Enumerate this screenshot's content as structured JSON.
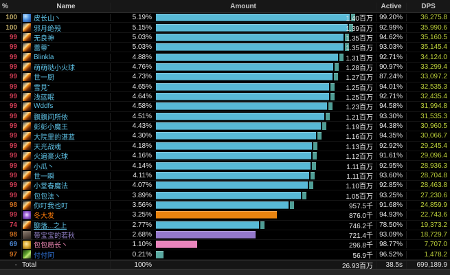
{
  "header": {
    "col_pct": "%",
    "col_name": "Name",
    "col_amount": "Amount",
    "col_active": "Active",
    "col_dps": "DPS"
  },
  "colors": {
    "mage_name": "#5fc3e7",
    "mage_bar": "#58b9d6",
    "bar_cap": "#4f9e96",
    "druid_name": "#ff7d0a",
    "druid_bar": "#e8830f",
    "warlock_name": "#9482c9",
    "warlock_bar": "#9478cb",
    "paladin_name": "#f58cba",
    "paladin_bar": "#ea85bd",
    "shaman_name": "#3377dd",
    "shaman_bar": "#5aa9a1",
    "lvl100": "#c2ad68",
    "lvl99": "#cc3b52",
    "lvl98": "#cc6e1e",
    "lvl69": "#4b86d2",
    "dps_text": "#bdd13b"
  },
  "max_pct": 5.19,
  "rows": [
    {
      "level": "100",
      "level_color": "#c2ad68",
      "icon": "frost",
      "icon_name": "frostbolt-spell-icon",
      "name": "皮长山丶",
      "name_color": "#5fc3e7",
      "pct": 5.19,
      "pct_label": "5.19%",
      "amount": "1.40百万",
      "active": "99.20%",
      "dps": "36,275.8",
      "bar_color": "#58b9d6",
      "cap_color": "#4f9e96"
    },
    {
      "level": "100",
      "level_color": "#c2ad68",
      "icon": "fire",
      "icon_name": "fireball-spell-icon",
      "name": "邪月绝殁",
      "name_color": "#5fc3e7",
      "pct": 5.15,
      "pct_label": "5.15%",
      "amount": "1.39百万",
      "active": "92.99%",
      "dps": "35,990.6",
      "bar_color": "#58b9d6",
      "cap_color": "#4f9e96"
    },
    {
      "level": "99",
      "level_color": "#cc3b52",
      "icon": "fire",
      "icon_name": "fireball-spell-icon",
      "name": "无良神",
      "name_color": "#5fc3e7",
      "pct": 5.03,
      "pct_label": "5.03%",
      "amount": "1.35百万",
      "active": "94.62%",
      "dps": "35,160.5",
      "bar_color": "#58b9d6",
      "cap_color": "#4f9e96"
    },
    {
      "level": "99",
      "level_color": "#cc3b52",
      "icon": "fire",
      "icon_name": "fireball-spell-icon",
      "name": "蕾蒂ˇ",
      "name_color": "#5fc3e7",
      "pct": 5.03,
      "pct_label": "5.03%",
      "amount": "1.35百万",
      "active": "93.03%",
      "dps": "35,145.4",
      "bar_color": "#58b9d6",
      "cap_color": "#4f9e96"
    },
    {
      "level": "99",
      "level_color": "#cc3b52",
      "icon": "fire",
      "icon_name": "fireball-spell-icon",
      "name": "Blinkla",
      "name_color": "#5fc3e7",
      "pct": 4.88,
      "pct_label": "4.88%",
      "amount": "1.31百万",
      "active": "92.71%",
      "dps": "34,124.0",
      "bar_color": "#58b9d6",
      "cap_color": "#4f9e96"
    },
    {
      "level": "99",
      "level_color": "#cc3b52",
      "icon": "fire",
      "icon_name": "fireball-spell-icon",
      "name": "萌萌哒小火球",
      "name_color": "#5fc3e7",
      "pct": 4.76,
      "pct_label": "4.76%",
      "amount": "1.28百万",
      "active": "90.97%",
      "dps": "33,299.4",
      "bar_color": "#58b9d6",
      "cap_color": "#4f9e96"
    },
    {
      "level": "99",
      "level_color": "#cc3b52",
      "icon": "fire",
      "icon_name": "fireball-spell-icon",
      "name": "世一厨",
      "name_color": "#5fc3e7",
      "pct": 4.73,
      "pct_label": "4.73%",
      "amount": "1.27百万",
      "active": "87.24%",
      "dps": "33,097.2",
      "bar_color": "#58b9d6",
      "cap_color": "#4f9e96"
    },
    {
      "level": "99",
      "level_color": "#cc3b52",
      "icon": "fire",
      "icon_name": "fireball-spell-icon",
      "name": "雪見ˇ",
      "name_color": "#5fc3e7",
      "pct": 4.65,
      "pct_label": "4.65%",
      "amount": "1.25百万",
      "active": "94.01%",
      "dps": "32,535.3",
      "bar_color": "#58b9d6",
      "cap_color": "#4f9e96"
    },
    {
      "level": "99",
      "level_color": "#cc3b52",
      "icon": "fire",
      "icon_name": "fireball-spell-icon",
      "name": "浅蓝眠",
      "name_color": "#5fc3e7",
      "pct": 4.64,
      "pct_label": "4.64%",
      "amount": "1.25百万",
      "active": "92.71%",
      "dps": "32,435.4",
      "bar_color": "#58b9d6",
      "cap_color": "#4f9e96"
    },
    {
      "level": "99",
      "level_color": "#cc3b52",
      "icon": "fire",
      "icon_name": "fireball-spell-icon",
      "name": "Wddfs",
      "name_color": "#5fc3e7",
      "pct": 4.58,
      "pct_label": "4.58%",
      "amount": "1.23百万",
      "active": "94.58%",
      "dps": "31,994.8",
      "bar_color": "#58b9d6",
      "cap_color": "#4f9e96"
    },
    {
      "level": "99",
      "level_color": "#cc3b52",
      "icon": "fire",
      "icon_name": "fireball-spell-icon",
      "name": "飘飘问所依",
      "name_color": "#5fc3e7",
      "pct": 4.51,
      "pct_label": "4.51%",
      "amount": "1.21百万",
      "active": "93.30%",
      "dps": "31,535.3",
      "bar_color": "#58b9d6",
      "cap_color": "#4f9e96"
    },
    {
      "level": "99",
      "level_color": "#cc3b52",
      "icon": "fire",
      "icon_name": "fireball-spell-icon",
      "name": "彭彭小魔王",
      "name_color": "#5fc3e7",
      "pct": 4.43,
      "pct_label": "4.43%",
      "amount": "1.19百万",
      "active": "94.38%",
      "dps": "30,960.5",
      "bar_color": "#58b9d6",
      "cap_color": "#4f9e96"
    },
    {
      "level": "99",
      "level_color": "#cc3b52",
      "icon": "fire",
      "icon_name": "fireball-spell-icon",
      "name": "大院里的湛蓝",
      "name_color": "#5fc3e7",
      "pct": 4.3,
      "pct_label": "4.30%",
      "amount": "1.16百万",
      "active": "94.35%",
      "dps": "30,066.7",
      "bar_color": "#58b9d6",
      "cap_color": "#4f9e96"
    },
    {
      "level": "99",
      "level_color": "#cc3b52",
      "icon": "fire",
      "icon_name": "fireball-spell-icon",
      "name": "天光战魂",
      "name_color": "#5fc3e7",
      "pct": 4.18,
      "pct_label": "4.18%",
      "amount": "1.13百万",
      "active": "92.92%",
      "dps": "29,245.4",
      "bar_color": "#58b9d6",
      "cap_color": "#4f9e96"
    },
    {
      "level": "99",
      "level_color": "#cc3b52",
      "icon": "fire",
      "icon_name": "fireball-spell-icon",
      "name": "火遍豪火球",
      "name_color": "#5fc3e7",
      "pct": 4.16,
      "pct_label": "4.16%",
      "amount": "1.12百万",
      "active": "91.61%",
      "dps": "29,096.4",
      "bar_color": "#58b9d6",
      "cap_color": "#4f9e96"
    },
    {
      "level": "99",
      "level_color": "#cc3b52",
      "icon": "fire",
      "icon_name": "fireball-spell-icon",
      "name": "小瓜丶",
      "name_color": "#5fc3e7",
      "pct": 4.14,
      "pct_label": "4.14%",
      "amount": "1.11百万",
      "active": "92.95%",
      "dps": "28,936.3",
      "bar_color": "#58b9d6",
      "cap_color": "#4f9e96"
    },
    {
      "level": "99",
      "level_color": "#cc3b52",
      "icon": "fire",
      "icon_name": "fireball-spell-icon",
      "name": "世一瞬",
      "name_color": "#5fc3e7",
      "pct": 4.11,
      "pct_label": "4.11%",
      "amount": "1.11百万",
      "active": "93.60%",
      "dps": "28,704.8",
      "bar_color": "#58b9d6",
      "cap_color": "#4f9e96"
    },
    {
      "level": "99",
      "level_color": "#cc3b52",
      "icon": "fire",
      "icon_name": "fireball-spell-icon",
      "name": "小堂春魔法",
      "name_color": "#5fc3e7",
      "pct": 4.07,
      "pct_label": "4.07%",
      "amount": "1.10百万",
      "active": "92.85%",
      "dps": "28,463.8",
      "bar_color": "#58b9d6",
      "cap_color": "#4f9e96"
    },
    {
      "level": "99",
      "level_color": "#cc3b52",
      "icon": "fire",
      "icon_name": "fireball-spell-icon",
      "name": "包包法丶",
      "name_color": "#5fc3e7",
      "pct": 3.89,
      "pct_label": "3.89%",
      "amount": "1.05百万",
      "active": "93.25%",
      "dps": "27,230.6",
      "bar_color": "#58b9d6",
      "cap_color": "#4f9e96"
    },
    {
      "level": "98",
      "level_color": "#cc6e1e",
      "icon": "fire",
      "icon_name": "fireball-spell-icon",
      "name": "你叮我也叮",
      "name_color": "#5fc3e7",
      "pct": 3.56,
      "pct_label": "3.56%",
      "amount": "957.5千",
      "active": "91.68%",
      "dps": "24,859.9",
      "bar_color": "#58b9d6",
      "cap_color": "#4f9e96"
    },
    {
      "level": "99",
      "level_color": "#cc3b52",
      "icon": "arcane",
      "icon_name": "arcane-spell-icon",
      "name": "冬大发",
      "name_color": "#ff7d0a",
      "pct": 3.25,
      "pct_label": "3.25%",
      "amount": "876.0千",
      "active": "94.93%",
      "dps": "22,743.6",
      "bar_color": "#e8830f",
      "cap_color": null
    },
    {
      "level": "74",
      "level_color": "#cc3b52",
      "icon": "fire",
      "icon_name": "fireball-spell-icon",
      "name": "聊落...之上",
      "name_color": "#5fc3e7",
      "underline": true,
      "pct": 2.77,
      "pct_label": "2.77%",
      "amount": "746.2千",
      "active": "78.50%",
      "dps": "19,373.2",
      "bar_color": "#58b9d6",
      "cap_color": "#4f9e96"
    },
    {
      "level": "98",
      "level_color": "#cc6e1e",
      "icon": "portrait",
      "icon_name": "character-portrait-icon",
      "name": "带宝宝的若秋",
      "name_color": "#9482c9",
      "pct": 2.68,
      "pct_label": "2.68%",
      "amount": "721.4千",
      "active": "93.09%",
      "dps": "18,729.7",
      "bar_color": "#9478cb",
      "cap_color": null
    },
    {
      "level": "69",
      "level_color": "#4b86d2",
      "icon": "gold",
      "icon_name": "paladin-crest-icon",
      "name": "包包局长丶",
      "name_color": "#f58cba",
      "pct": 1.1,
      "pct_label": "1.10%",
      "amount": "296.8千",
      "active": "98.77%",
      "dps": "7,707.0",
      "bar_color": "#ea85bd",
      "cap_color": null
    },
    {
      "level": "97",
      "level_color": "#cc6e1e",
      "icon": "claw",
      "icon_name": "claw-spell-icon",
      "name": "付付阿",
      "name_color": "#3377dd",
      "pct": 0.21,
      "pct_label": "0.21%",
      "amount": "56.9千",
      "active": "96.52%",
      "dps": "1,478.2",
      "bar_color": "#5aa9a1",
      "cap_color": null
    }
  ],
  "total": {
    "level": "-",
    "name": "Total",
    "pct_label": "100%",
    "amount": "26.93百万",
    "active": "38.5s",
    "dps": "699,189.9"
  }
}
